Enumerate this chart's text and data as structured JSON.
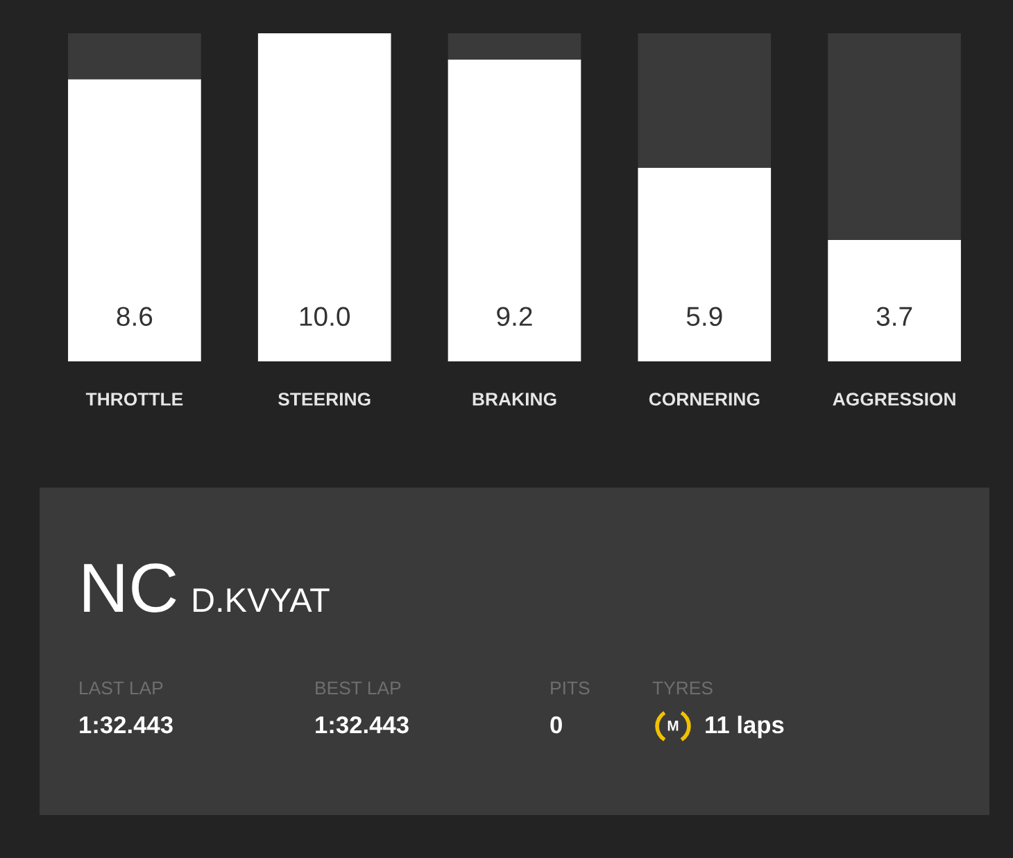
{
  "chart_data": [
    {
      "type": "bar",
      "categories": [
        "THROTTLE",
        "STEERING",
        "BRAKING",
        "CORNERING",
        "AGGRESSION"
      ],
      "stacked": true,
      "ylim": [
        0,
        10
      ],
      "tick_labels": "x",
      "series": [
        {
          "color": "#ffffff",
          "values": [
            8.6,
            10.0,
            9.2,
            5.9,
            3.7
          ],
          "value_labels": [
            "8.6",
            "10.0",
            "9.2",
            "5.9",
            "3.7"
          ]
        },
        {
          "color": "#3a3a3a",
          "values": [
            1.4,
            0,
            0.8,
            4.1,
            6.3
          ]
        }
      ]
    },
    {
      "type": "other",
      "title": "NC",
      "subtitle": "D.KVYAT",
      "categories": [
        "LAST LAP",
        "BEST LAP",
        "PITS",
        "TYRES"
      ],
      "value_labels": [
        "1:32.443",
        "1:32.443",
        "0",
        "11 laps"
      ],
      "annotations": [
        "M"
      ]
    }
  ]
}
